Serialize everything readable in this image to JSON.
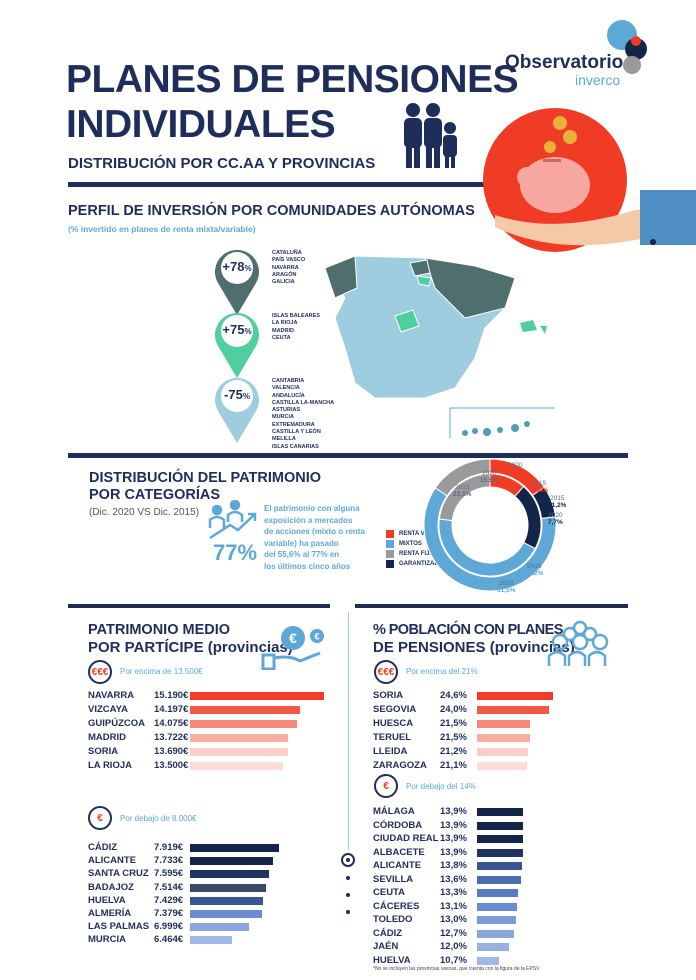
{
  "header": {
    "title_line1": "PLANES DE PENSIONES",
    "title_line2": "INDIVIDUALES",
    "subtitle": "DISTRIBUCIÓN POR CC.AA Y PROVINCIAS",
    "logo_line1": "Observatorio",
    "logo_line2": "inverco"
  },
  "perfil": {
    "title": "PERFIL DE INVERSIÓN POR COMUNIDADES AUTÓNOMAS",
    "subtitle": "(% invertido en planes de renta mixta/variable)",
    "groups": [
      {
        "value": "+78",
        "unit": "%",
        "color": "#4f6e6e",
        "regions": [
          "CATALUÑA",
          "PAÍS VASCO",
          "NAVARRA",
          "ARAGÓN",
          "GALICIA"
        ]
      },
      {
        "value": "+75",
        "unit": "%",
        "color": "#4fcf9e",
        "regions": [
          "ISLAS BALEARES",
          "LA RIOJA",
          "MADRID",
          "CEUTA"
        ]
      },
      {
        "value": "-75",
        "unit": "%",
        "color": "#9fcde0",
        "regions": [
          "CANTABRIA",
          "VALENCIA",
          "ANDALUCÍA",
          "CASTILLA LA-MANCHA",
          "ASTURIAS",
          "MURCIA",
          "EXTREMADURA",
          "CASTILLA Y LEÓN",
          "MELILLA",
          "ISLAS CANARIAS"
        ]
      }
    ]
  },
  "distribucion": {
    "title_line1": "DISTRIBUCIÓN DEL PATRIMONIO",
    "title_line2": "POR CATEGORÍAS",
    "subtitle": "(Dic. 2020 VS Dic. 2015)",
    "big_value": "77%",
    "text": [
      "El patrimonio con alguna",
      "exposición a mercados",
      "de acciones (mixto o renta",
      "variable) ha pasado",
      "del 55,6% al 77% en",
      "los últimos cinco años"
    ]
  },
  "patrimonio": {
    "title_line1": "PATRIMONIO MEDIO",
    "title_line2": "POR PARTÍCIPE (provincias)",
    "above_badge": "€€€",
    "above_label": "Por encima de 13.500€",
    "below_badge": "€",
    "below_label": "Por debajo de 8.000€"
  },
  "poblacion": {
    "title_line1": "% POBLACIÓN CON PLANES",
    "title_line2": "DE PENSIONES (provincias)",
    "above_badge": "€€€",
    "above_label": "Por encima del 21%",
    "below_badge": "€",
    "below_label": "Por debajo del 14%"
  },
  "footnote": "*No se incluyen las provincias vascas, que cuenta con la figura de la EPSV",
  "chart_data": [
    {
      "type": "pie",
      "subtype": "donut",
      "legend": [
        "RENTA VARIABLE",
        "MIXTOS",
        "RENTA FIJA",
        "GARANTIZADOS"
      ],
      "colors": [
        "#f03c24",
        "#5ea8d8",
        "#9a9a9a",
        "#14254a"
      ],
      "series": [
        {
          "name": "2020",
          "values": [
            15.3,
            61.5,
            15.5,
            7.7
          ],
          "labels": [
            "15,3%",
            "61,5%",
            "15,5%",
            "7,7%"
          ]
        },
        {
          "name": "2015",
          "values": [
            11.4,
            44.2,
            23.1,
            21.2
          ],
          "labels": [
            "11,4%",
            "44,2%",
            "23,1%",
            "21,2%"
          ]
        }
      ]
    },
    {
      "type": "bar",
      "orientation": "horizontal",
      "unit": "€",
      "categories": [
        "NAVARRA",
        "VIZCAYA",
        "GUIPÚZCOA",
        "MADRID",
        "SORIA",
        "LA RIOJA"
      ],
      "values": [
        15190,
        14197,
        14075,
        13722,
        13690,
        13500
      ],
      "labels": [
        "15.190€",
        "14.197€",
        "14.075€",
        "13.722€",
        "13.690€",
        "13.500€"
      ]
    },
    {
      "type": "bar",
      "orientation": "horizontal",
      "unit": "€",
      "categories": [
        "CÁDIZ",
        "ALICANTE",
        "SANTA CRUZ",
        "BADAJOZ",
        "HUELVA",
        "ALMERÍA",
        "LAS PALMAS",
        "MURCIA"
      ],
      "values": [
        7919,
        7733,
        7595,
        7514,
        7429,
        7379,
        6999,
        6464
      ],
      "labels": [
        "7.919€",
        "7.733€",
        "7.595€",
        "7.514€",
        "7.429€",
        "7.379€",
        "6.999€",
        "6.464€"
      ]
    },
    {
      "type": "bar",
      "orientation": "horizontal",
      "unit": "%",
      "categories": [
        "SORIA",
        "SEGOVIA",
        "HUESCA",
        "TERUEL",
        "LLEIDA",
        "ZARAGOZA"
      ],
      "values": [
        24.6,
        24.0,
        21.5,
        21.5,
        21.2,
        21.1
      ],
      "labels": [
        "24,6%",
        "24,0%",
        "21,5%",
        "21,5%",
        "21,2%",
        "21,1%"
      ]
    },
    {
      "type": "bar",
      "orientation": "horizontal",
      "unit": "%",
      "categories": [
        "MÁLAGA",
        "CÓRDOBA",
        "CIUDAD REAL",
        "ALBACETE",
        "ALICANTE",
        "SEVILLA",
        "CEUTA",
        "CÁCERES",
        "TOLEDO",
        "CÁDIZ",
        "JAÉN",
        "HUELVA"
      ],
      "values": [
        13.9,
        13.9,
        13.9,
        13.9,
        13.8,
        13.6,
        13.3,
        13.1,
        13.0,
        12.7,
        12.0,
        10.7
      ],
      "labels": [
        "13,9%",
        "13,9%",
        "13,9%",
        "13,9%",
        "13,8%",
        "13,6%",
        "13,3%",
        "13,1%",
        "13,0%",
        "12,7%",
        "12,0%",
        "10,7%"
      ]
    }
  ]
}
